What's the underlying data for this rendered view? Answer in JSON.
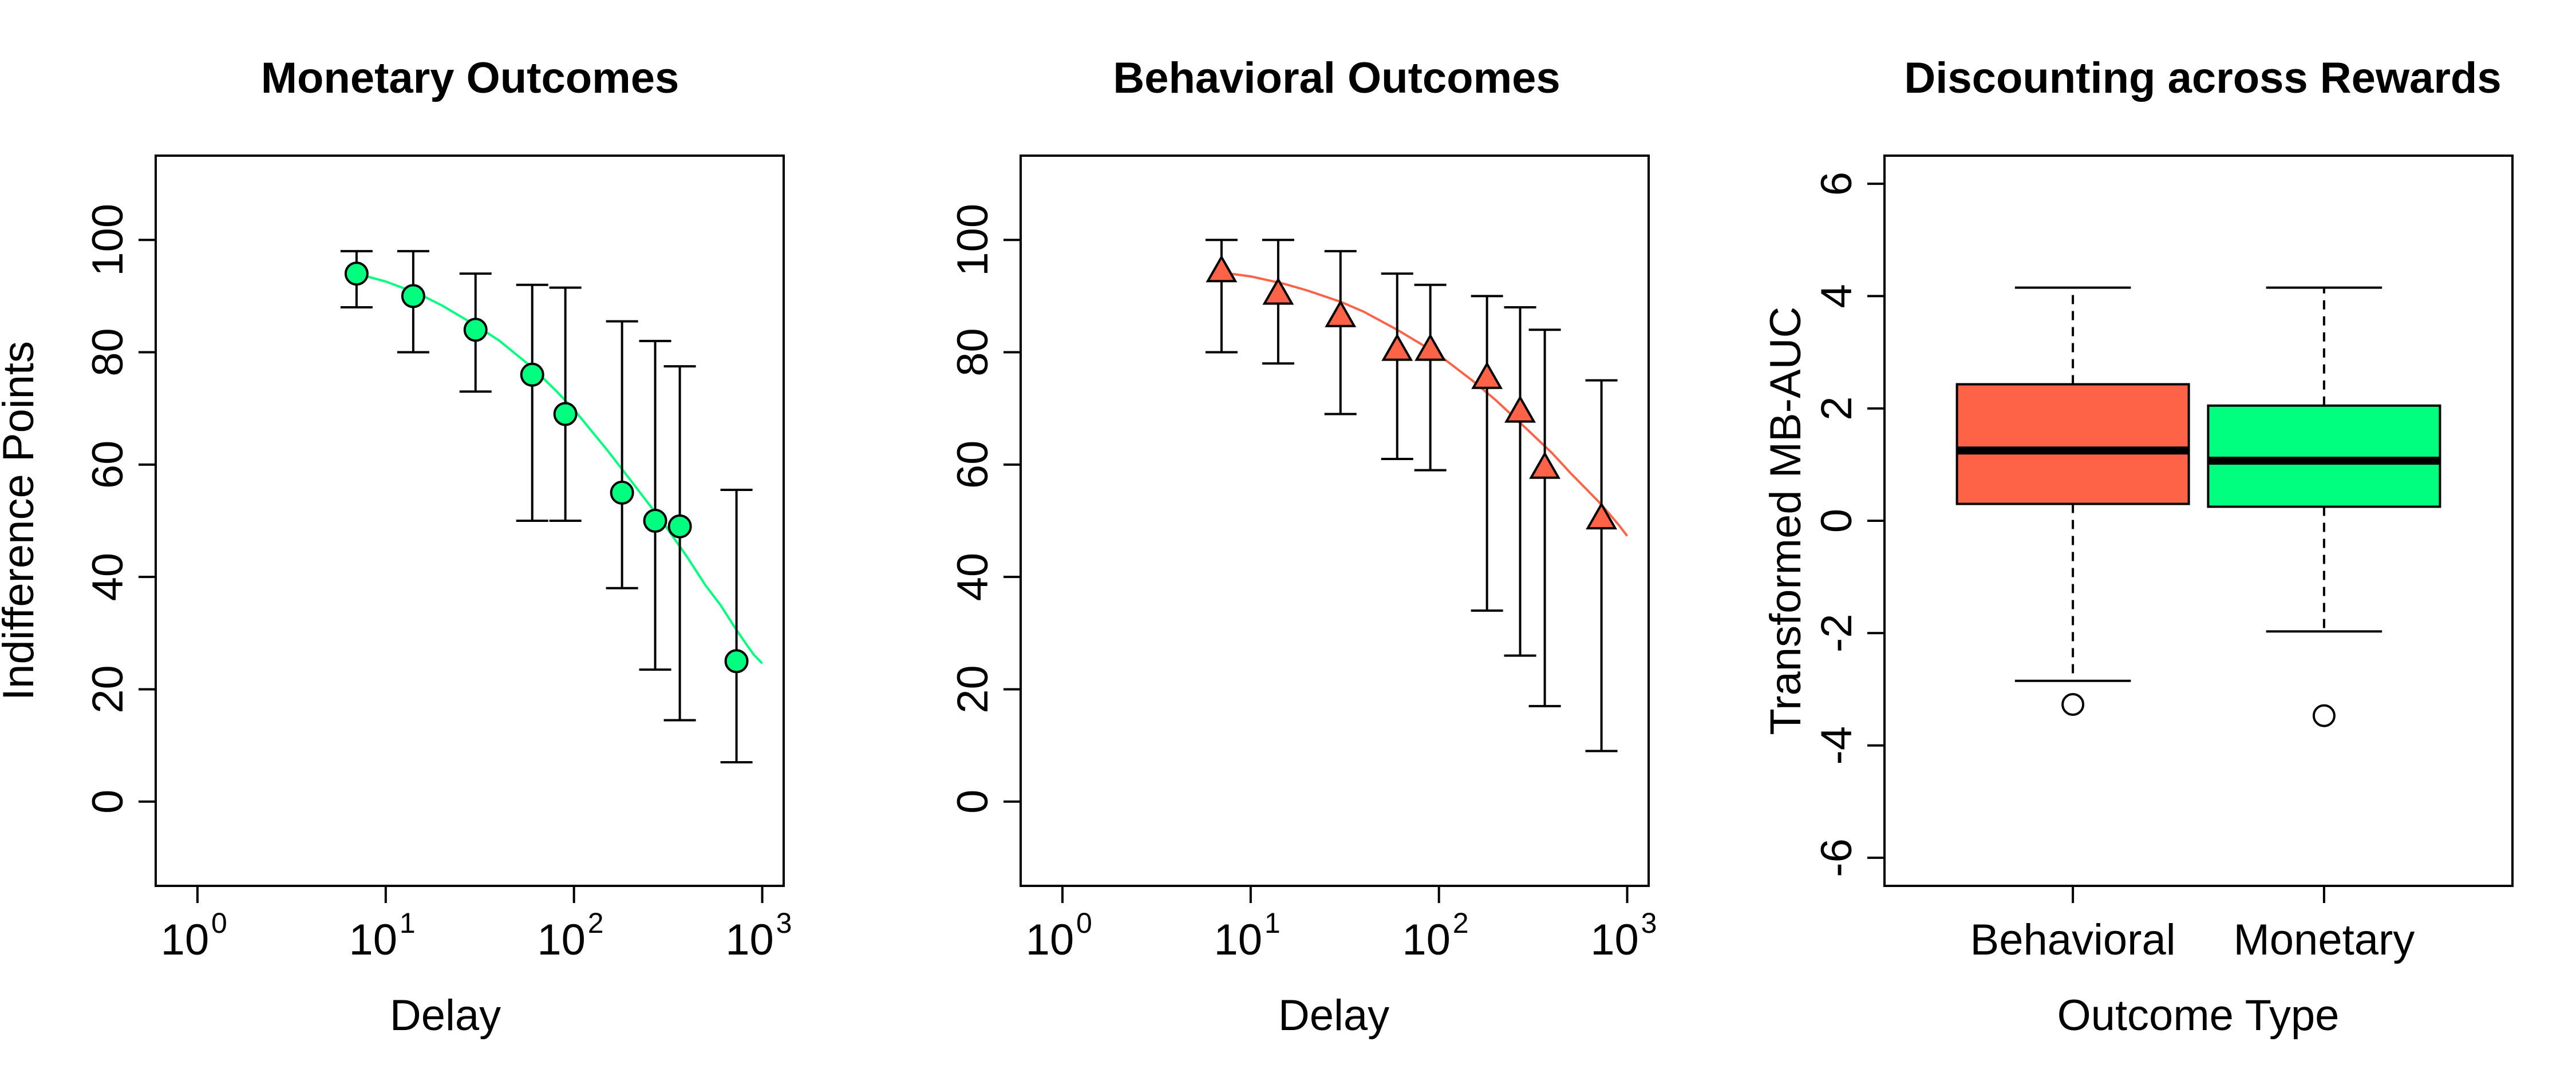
{
  "colors": {
    "monetary": "#00FF7F",
    "behavioral": "#FF6347",
    "axis": "#000000",
    "background": "#FFFFFF"
  },
  "chart_data": [
    {
      "type": "scatter",
      "title": "Monetary Outcomes",
      "xlabel": "Delay",
      "ylabel": "Indifference Points",
      "x_scale": "log",
      "xlim": [
        0.6,
        1300
      ],
      "ylim": [
        -15,
        115
      ],
      "x_ticks": [
        {
          "base": "10",
          "exp": "0",
          "value": 1
        },
        {
          "base": "10",
          "exp": "1",
          "value": 10
        },
        {
          "base": "10",
          "exp": "2",
          "value": 100
        },
        {
          "base": "10",
          "exp": "3",
          "value": 1000
        }
      ],
      "y_ticks": [
        "0",
        "20",
        "40",
        "60",
        "80",
        "100"
      ],
      "marker": "circle",
      "color_key": "monetary",
      "points": [
        {
          "x": 7,
          "y": 94,
          "err_low": 88,
          "err_high": 98
        },
        {
          "x": 14,
          "y": 90,
          "err_low": 80,
          "err_high": 98
        },
        {
          "x": 30,
          "y": 84,
          "err_low": 73,
          "err_high": 94
        },
        {
          "x": 60,
          "y": 76,
          "err_low": 50,
          "err_high": 92
        },
        {
          "x": 90,
          "y": 69,
          "err_low": 50,
          "err_high": 91.5
        },
        {
          "x": 180,
          "y": 55,
          "err_low": 38,
          "err_high": 85.5
        },
        {
          "x": 270,
          "y": 50,
          "err_low": 23.5,
          "err_high": 82
        },
        {
          "x": 365,
          "y": 49,
          "err_low": 14.5,
          "err_high": 77.5
        },
        {
          "x": 730,
          "y": 25,
          "err_low": 7,
          "err_high": 55.5
        }
      ],
      "fit_curve": {
        "x": [
          7,
          10,
          15,
          20,
          30,
          40,
          60,
          80,
          100,
          150,
          200,
          300,
          400,
          500,
          600,
          700,
          800,
          900,
          1000
        ],
        "y": [
          94,
          92.6,
          90.4,
          88.3,
          84.8,
          82.1,
          77.3,
          73.2,
          69.8,
          62.6,
          57.2,
          49.5,
          43.5,
          38.5,
          35,
          31.5,
          28.6,
          26.2,
          24.6
        ]
      }
    },
    {
      "type": "scatter",
      "title": "Behavioral Outcomes",
      "xlabel": "Delay",
      "ylabel": "",
      "x_scale": "log",
      "xlim": [
        0.6,
        1300
      ],
      "ylim": [
        -15,
        115
      ],
      "x_ticks": [
        {
          "base": "10",
          "exp": "0",
          "value": 1
        },
        {
          "base": "10",
          "exp": "1",
          "value": 10
        },
        {
          "base": "10",
          "exp": "2",
          "value": 100
        },
        {
          "base": "10",
          "exp": "3",
          "value": 1000
        }
      ],
      "y_ticks": [
        "0",
        "20",
        "40",
        "60",
        "80",
        "100"
      ],
      "marker": "triangle",
      "color_key": "behavioral",
      "points": [
        {
          "x": 7,
          "y": 94.5,
          "err_low": 80,
          "err_high": 100
        },
        {
          "x": 14,
          "y": 90.5,
          "err_low": 78,
          "err_high": 100
        },
        {
          "x": 30,
          "y": 86.5,
          "err_low": 69,
          "err_high": 98
        },
        {
          "x": 60,
          "y": 80.5,
          "err_low": 61,
          "err_high": 94
        },
        {
          "x": 90,
          "y": 80.5,
          "err_low": 59,
          "err_high": 92
        },
        {
          "x": 180,
          "y": 75.5,
          "err_low": 34,
          "err_high": 90
        },
        {
          "x": 270,
          "y": 69.5,
          "err_low": 26,
          "err_high": 88
        },
        {
          "x": 365,
          "y": 59.5,
          "err_low": 17,
          "err_high": 84
        },
        {
          "x": 730,
          "y": 50.5,
          "err_low": 9,
          "err_high": 75
        }
      ],
      "fit_curve": {
        "x": [
          7,
          10,
          15,
          20,
          30,
          40,
          60,
          80,
          100,
          150,
          200,
          300,
          400,
          500,
          600,
          700,
          800,
          900,
          1000
        ],
        "y": [
          94.2,
          93.5,
          92.2,
          91,
          89,
          87.2,
          84,
          81.5,
          79.5,
          75,
          71.5,
          66,
          62,
          58.5,
          55.8,
          53.5,
          51.3,
          49.3,
          47.3
        ]
      }
    },
    {
      "type": "box",
      "title": "Discounting across Rewards",
      "xlabel": "Outcome Type",
      "ylabel": "Transformed MB-AUC",
      "ylim": [
        -6.5,
        6.5
      ],
      "y_ticks": [
        "-6",
        "-4",
        "-2",
        "0",
        "2",
        "4",
        "6"
      ],
      "categories": [
        "Behavioral",
        "Monetary"
      ],
      "boxes": [
        {
          "name": "Behavioral",
          "color_key": "behavioral",
          "whisker_low": -2.85,
          "q1": 0.3,
          "median": 1.25,
          "q3": 2.43,
          "whisker_high": 4.15,
          "outliers": [
            -3.27
          ]
        },
        {
          "name": "Monetary",
          "color_key": "monetary",
          "whisker_low": -1.97,
          "q1": 0.25,
          "median": 1.07,
          "q3": 2.05,
          "whisker_high": 4.15,
          "outliers": [
            -3.47
          ]
        }
      ]
    }
  ]
}
